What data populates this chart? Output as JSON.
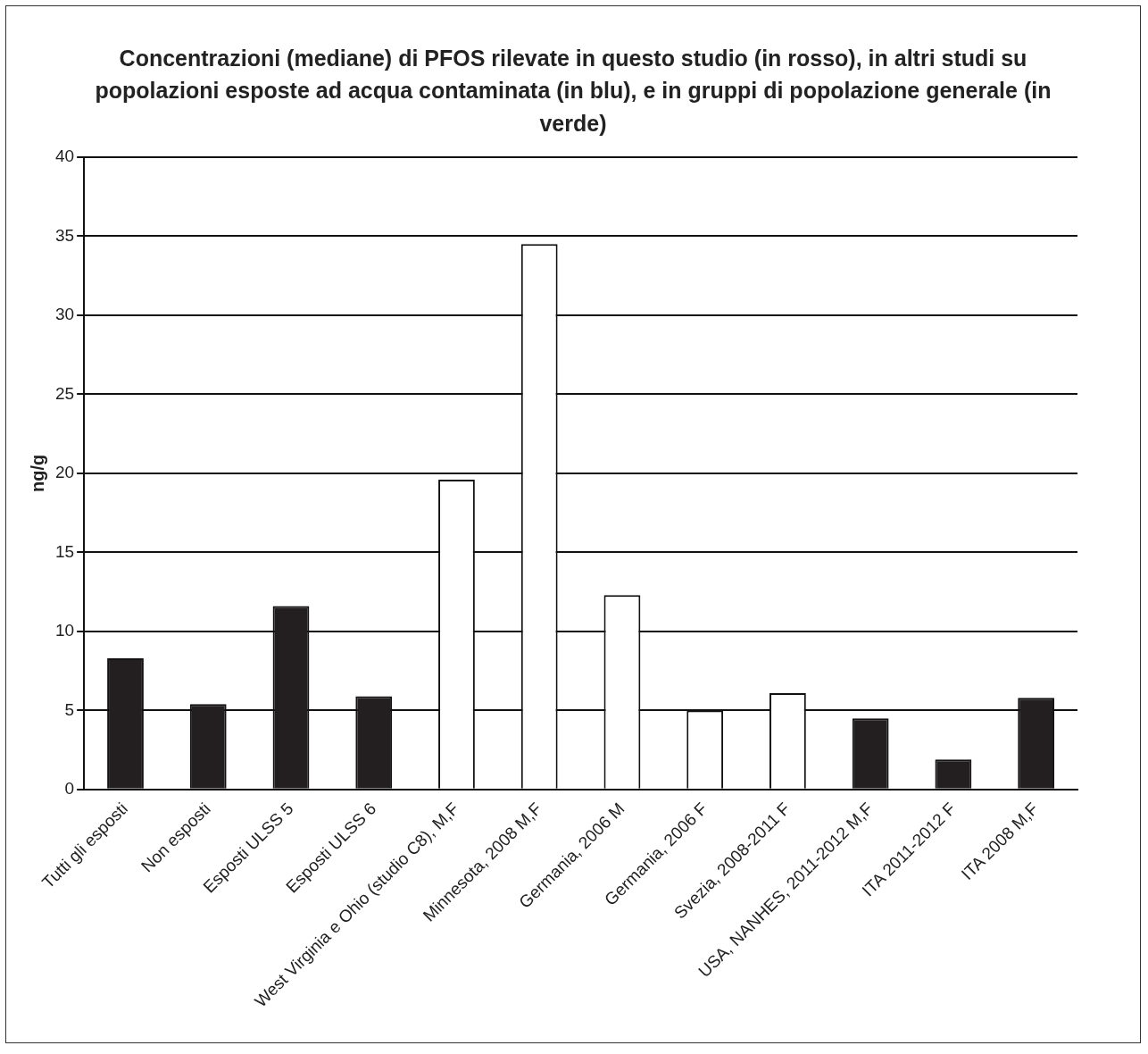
{
  "chart_data": {
    "type": "bar",
    "title": "Concentrazioni (mediane) di PFOS rilevate in questo studio (in rosso), in altri studi su popolazioni esposte ad acqua contaminata (in blu), e in gruppi di popolazione generale (in verde)",
    "categories": [
      "Tutti gli esposti",
      "Non esposti",
      "Esposti ULSS 5",
      "Esposti ULSS 6",
      "West Virginia e Ohio (studio C8), M,F",
      "Minnesota, 2008 M,F",
      "Germania, 2006 M",
      "Germania, 2006 F",
      "Svezia, 2008-2011 F",
      "USA, NANHES, 2011-2012 M,F",
      "ITA 2011-2012 F",
      "ITA 2008 M,F"
    ],
    "values": [
      8.3,
      5.4,
      11.6,
      5.9,
      19.6,
      34.5,
      12.3,
      5.0,
      6.1,
      4.5,
      1.9,
      5.8
    ],
    "colors": [
      "#231f20",
      "#231f20",
      "#231f20",
      "#231f20",
      "#ffffff",
      "#ffffff",
      "#ffffff",
      "#ffffff",
      "#ffffff",
      "#231f20",
      "#231f20",
      "#231f20"
    ],
    "ylabel": "ng/g",
    "ylim": [
      0,
      40
    ],
    "yticks": [
      0,
      5,
      10,
      15,
      20,
      25,
      30,
      35,
      40
    ],
    "grid": "y"
  }
}
